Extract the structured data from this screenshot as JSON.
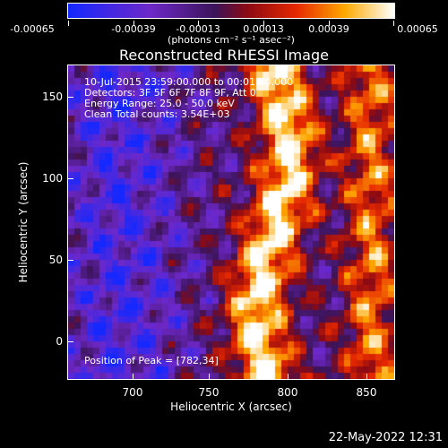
{
  "colorbar": {
    "ticks": [
      "-0.00065",
      "-0.00039",
      "-0.00013",
      "0.00013",
      "0.00039",
      "0.00065"
    ],
    "unit": "(photons cm⁻² s⁻¹ asec⁻²)"
  },
  "title": "Reconstructed RHESSI Image",
  "info": {
    "line1": "10-Jul-2015 23:59:00.000 to 00:01:00.000",
    "line2": "Detectors: 3F 5F 6F 7F 8F 9F, Att 0",
    "line3": "Energy Range: 25.0 - 50.0 keV",
    "line4": "Clean     Total counts: 3.54E+03",
    "peak": "Position of Peak = [782,34]"
  },
  "axes": {
    "xlabel": "Heliocentric X (arcsec)",
    "ylabel": "Heliocentric Y (arcsec)",
    "xticks": [
      "700",
      "750",
      "800",
      "850"
    ],
    "yticks": [
      "150",
      "100",
      "50",
      "0"
    ]
  },
  "footer": "22-May-2022 12:31",
  "colors": {
    "low": "#1020ff",
    "mid": "#8a2be2",
    "high": "#ffffff"
  }
}
